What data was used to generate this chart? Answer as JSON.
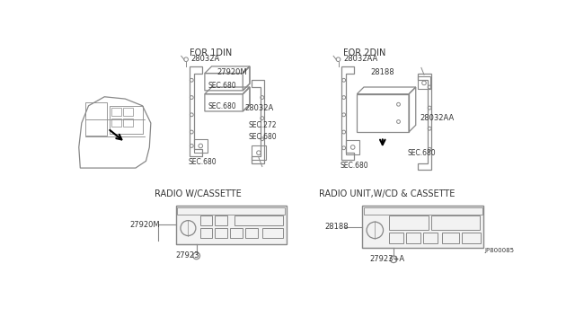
{
  "bg_color": "#ffffff",
  "line_color": "#888888",
  "text_color": "#333333",
  "fig_width": 6.4,
  "fig_height": 3.72,
  "dpi": 100,
  "labels": {
    "for_1din": "FOR 1DIN",
    "for_2din": "FOR 2DIN",
    "radio_cassette": "RADIO W/CASSETTE",
    "radio_cd_cassette": "RADIO UNIT,W/CD & CASSETTE",
    "part_28032A_1": "28032A",
    "part_28032A_2": "28032A",
    "part_28032AA_1": "28032AA",
    "part_28032AA_2": "28032AA",
    "part_27920M_1": "27920M",
    "part_27920M_2": "27920M",
    "part_28188_1": "28188",
    "part_28188_2": "28188",
    "sec680_a": "SEC.680",
    "sec680_b": "SEC.680",
    "sec680_c": "SEC.680",
    "sec680_d": "SEC.680",
    "sec680_e": "SEC.680",
    "sec272": "SEC.272",
    "part_27923_1": "27923",
    "part_27923_2": "27923+A",
    "jp": "JP800085"
  }
}
